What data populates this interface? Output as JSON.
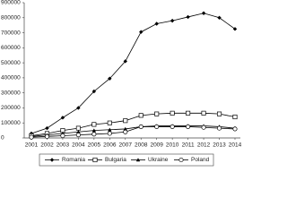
{
  "chart_data": {
    "type": "line",
    "categories": [
      "2001",
      "2002",
      "2003",
      "2004",
      "2005",
      "2006",
      "2007",
      "2008",
      "2009",
      "2010",
      "2011",
      "2012",
      "2013",
      "2014"
    ],
    "series": [
      {
        "name": "Romania",
        "color": "#000000",
        "marker": "diamond",
        "values": [
          30000,
          65000,
          135000,
          200000,
          310000,
          395000,
          510000,
          705000,
          760000,
          780000,
          805000,
          830000,
          800000,
          725000
        ]
      },
      {
        "name": "Bulgaria",
        "color": "#000000",
        "marker": "square-open",
        "values": [
          15000,
          30000,
          50000,
          65000,
          90000,
          100000,
          115000,
          150000,
          160000,
          165000,
          165000,
          165000,
          160000,
          140000
        ]
      },
      {
        "name": "Ukraine",
        "color": "#000000",
        "marker": "triangle",
        "values": [
          10000,
          20000,
          30000,
          40000,
          50000,
          55000,
          60000,
          75000,
          80000,
          80000,
          80000,
          80000,
          75000,
          65000
        ]
      },
      {
        "name": "Poland",
        "color": "#000000",
        "marker": "circle-open",
        "values": [
          5000,
          10000,
          15000,
          20000,
          25000,
          30000,
          40000,
          75000,
          75000,
          75000,
          75000,
          70000,
          65000,
          60000
        ]
      }
    ],
    "ylim": [
      0,
      900000
    ],
    "yticks": [
      0,
      100000,
      200000,
      300000,
      400000,
      500000,
      600000,
      700000,
      800000,
      900000
    ],
    "grid": false
  }
}
